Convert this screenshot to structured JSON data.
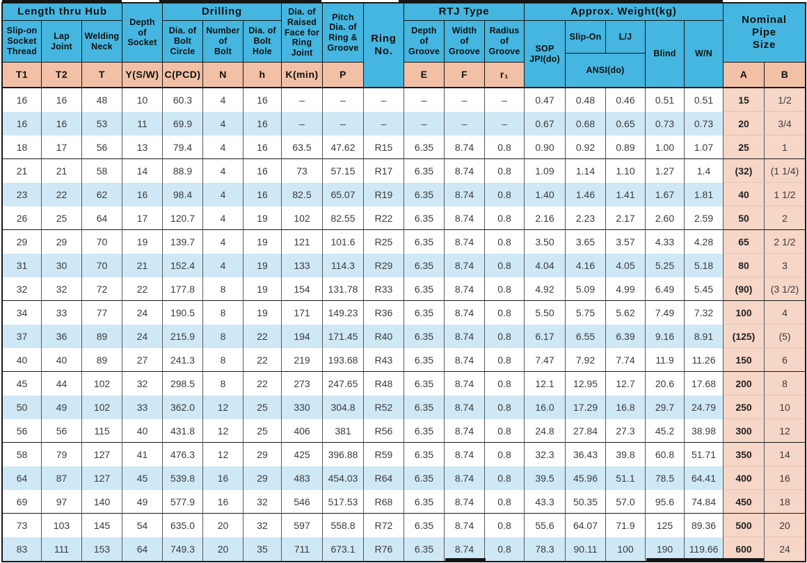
{
  "table": {
    "title_note": "Flange dimension table",
    "header": {
      "length_thru_hub": "Length thru Hub",
      "slip_on_socket_thread": "Slip-on\nSocket\nThread",
      "lap_joint": "Lap\nJoint",
      "welding_neck": "Welding\nNeck",
      "depth_of_socket": "Depth\nof\nSocket",
      "drilling": "Drilling",
      "dia_bolt_circle": "Dia. of\nBolt\nCircle",
      "number_of_bolt": "Number\nof\nBolt",
      "dia_bolt_hole": "Dia. of\nBolt\nHole",
      "dia_raised_face": "Dia. of\nRaised\nFace for\nRing Joint",
      "pitch_dia": "Pitch\nDia. of\nRing &\nGroove",
      "ring_no": "Ring\nNo.",
      "rtj_type": "RTJ Type",
      "depth_of_groove": "Depth\nof\nGroove",
      "width_of_groove": "Width\nof\nGroove",
      "radius_of_groove": "Radius\nof\nGroove",
      "approx_weight": "Approx. Weight(kg)",
      "sop_jpi": "SOP\nJPI(do)",
      "slip_on": "Slip-On",
      "lj": "L/J",
      "ansi": "ANSI(do)",
      "blind": "Blind",
      "wn": "W/N",
      "nominal_pipe_size": "Nominal\nPipe\nSize"
    },
    "symbols": {
      "t1": "T1",
      "t2": "T2",
      "t": "T",
      "y": "Y(S/W)",
      "c": "C(PCD)",
      "n": "N",
      "h": "h",
      "k": "K(min)",
      "p": "P",
      "e": "E",
      "f": "F",
      "r1": "r₁",
      "a": "A",
      "b": "B"
    },
    "rows": [
      [
        "16",
        "16",
        "48",
        "10",
        "60.3",
        "4",
        "16",
        "–",
        "–",
        "–",
        "–",
        "–",
        "–",
        "0.47",
        "0.48",
        "0.46",
        "0.51",
        "0.51",
        "15",
        "1/2"
      ],
      [
        "16",
        "16",
        "53",
        "11",
        "69.9",
        "4",
        "16",
        "–",
        "–",
        "–",
        "–",
        "–",
        "–",
        "0.67",
        "0.68",
        "0.65",
        "0.73",
        "0.73",
        "20",
        "3/4"
      ],
      [
        "18",
        "17",
        "56",
        "13",
        "79.4",
        "4",
        "16",
        "63.5",
        "47.62",
        "R15",
        "6.35",
        "8.74",
        "0.8",
        "0.90",
        "0.92",
        "0.89",
        "1.00",
        "1.07",
        "25",
        "1"
      ],
      [
        "21",
        "21",
        "58",
        "14",
        "88.9",
        "4",
        "16",
        "73",
        "57.15",
        "R17",
        "6.35",
        "8.74",
        "0.8",
        "1.09",
        "1.14",
        "1.10",
        "1.27",
        "1.4",
        "(32)",
        "(1 1/4)"
      ],
      [
        "23",
        "22",
        "62",
        "16",
        "98.4",
        "4",
        "16",
        "82.5",
        "65.07",
        "R19",
        "6.35",
        "8.74",
        "0.8",
        "1.40",
        "1.46",
        "1.41",
        "1.67",
        "1.81",
        "40",
        "1 1/2"
      ],
      [
        "26",
        "25",
        "64",
        "17",
        "120.7",
        "4",
        "19",
        "102",
        "82.55",
        "R22",
        "6.35",
        "8.74",
        "0.8",
        "2.16",
        "2.23",
        "2.17",
        "2.60",
        "2.59",
        "50",
        "2"
      ],
      [
        "29",
        "29",
        "70",
        "19",
        "139.7",
        "4",
        "19",
        "121",
        "101.6",
        "R25",
        "6.35",
        "8.74",
        "0.8",
        "3.50",
        "3.65",
        "3.57",
        "4.33",
        "4.28",
        "65",
        "2 1/2"
      ],
      [
        "31",
        "30",
        "70",
        "21",
        "152.4",
        "4",
        "19",
        "133",
        "114.3",
        "R29",
        "6.35",
        "8.74",
        "0.8",
        "4.04",
        "4.16",
        "4.05",
        "5.25",
        "5.18",
        "80",
        "3"
      ],
      [
        "32",
        "32",
        "72",
        "22",
        "177.8",
        "8",
        "19",
        "154",
        "131.78",
        "R33",
        "6.35",
        "8.74",
        "0.8",
        "4.92",
        "5.09",
        "4.99",
        "6.49",
        "5.45",
        "(90)",
        "(3 1/2)"
      ],
      [
        "34",
        "33",
        "77",
        "24",
        "190.5",
        "8",
        "19",
        "171",
        "149.23",
        "R36",
        "6.35",
        "8.74",
        "0.8",
        "5.50",
        "5.75",
        "5.62",
        "7.49",
        "7.32",
        "100",
        "4"
      ],
      [
        "37",
        "36",
        "89",
        "24",
        "215.9",
        "8",
        "22",
        "194",
        "171.45",
        "R40",
        "6.35",
        "8.74",
        "0.8",
        "6.17",
        "6.55",
        "6.39",
        "9.16",
        "8.91",
        "(125)",
        "(5)"
      ],
      [
        "40",
        "40",
        "89",
        "27",
        "241.3",
        "8",
        "22",
        "219",
        "193.68",
        "R43",
        "6.35",
        "8.74",
        "0.8",
        "7.47",
        "7.92",
        "7.74",
        "11.9",
        "11.26",
        "150",
        "6"
      ],
      [
        "45",
        "44",
        "102",
        "32",
        "298.5",
        "8",
        "22",
        "273",
        "247.65",
        "R48",
        "6.35",
        "8.74",
        "0.8",
        "12.1",
        "12.95",
        "12.7",
        "20.6",
        "17.68",
        "200",
        "8"
      ],
      [
        "50",
        "49",
        "102",
        "33",
        "362.0",
        "12",
        "25",
        "330",
        "304.8",
        "R52",
        "6.35",
        "8.74",
        "0.8",
        "16.0",
        "17.29",
        "16.8",
        "29.7",
        "24.79",
        "250",
        "10"
      ],
      [
        "56",
        "56",
        "115",
        "40",
        "431.8",
        "12",
        "25",
        "406",
        "381",
        "R56",
        "6.35",
        "8.74",
        "0.8",
        "24.8",
        "27.84",
        "27.3",
        "45.2",
        "38.98",
        "300",
        "12"
      ],
      [
        "58",
        "79",
        "127",
        "41",
        "476.3",
        "12",
        "29",
        "425",
        "396.88",
        "R59",
        "6.35",
        "8.74",
        "0.8",
        "32.3",
        "36.43",
        "39.8",
        "60.8",
        "51.71",
        "350",
        "14"
      ],
      [
        "64",
        "87",
        "127",
        "45",
        "539.8",
        "16",
        "29",
        "483",
        "454.03",
        "R64",
        "6.35",
        "8.74",
        "0.8",
        "39.5",
        "45.96",
        "51.1",
        "78.5",
        "64.41",
        "400",
        "16"
      ],
      [
        "69",
        "97",
        "140",
        "49",
        "577.9",
        "16",
        "32",
        "546",
        "517.53",
        "R68",
        "6.35",
        "8.74",
        "0.8",
        "43.3",
        "50.35",
        "57.0",
        "95.6",
        "74.84",
        "450",
        "18"
      ],
      [
        "73",
        "103",
        "145",
        "54",
        "635.0",
        "20",
        "32",
        "597",
        "558.8",
        "R72",
        "6.35",
        "8.74",
        "0.8",
        "55.6",
        "64.07",
        "71.9",
        "125",
        "89.36",
        "500",
        "20"
      ],
      [
        "83",
        "111",
        "153",
        "64",
        "749.3",
        "20",
        "35",
        "711",
        "673.1",
        "R76",
        "6.35",
        "8.74",
        "0.8",
        "78.3",
        "90.11",
        "100",
        "190",
        "119.66",
        "600",
        "24"
      ]
    ],
    "colors": {
      "header_cyan": "#45b6e0",
      "header_salmon": "#f1c0a5",
      "row_highlight_blue": "#cfe8f6",
      "pipe_size_salmon": "#f6d6c6",
      "grid_line": "#161616"
    }
  }
}
